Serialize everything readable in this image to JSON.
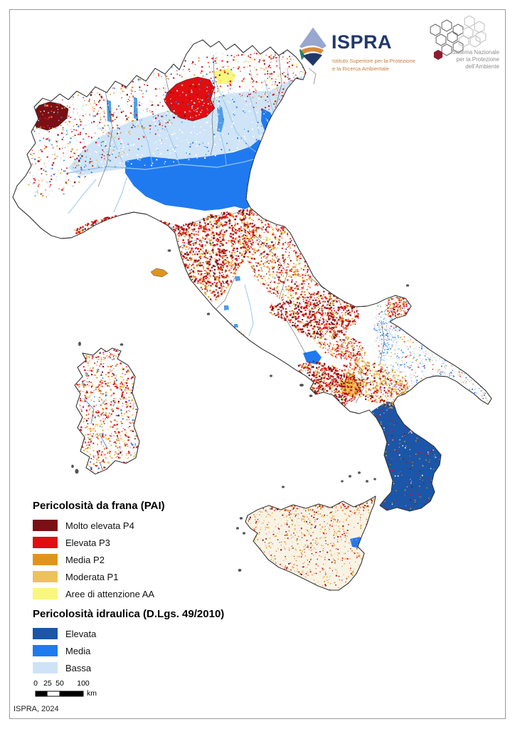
{
  "page": {
    "attribution": "ISPRA, 2024"
  },
  "logos": {
    "ispra": {
      "acronym": "ISPRA",
      "subtitle_line1": "Istituto Superiore per la Protezione",
      "subtitle_line2": "e la Ricerca Ambientale",
      "navy": "#21386b",
      "orange": "#d8893a",
      "teal": "#2a7f6f",
      "light_blue": "#98a7d0",
      "subtitle_color": "#c8803c"
    },
    "snpa": {
      "line1": "Sistema Nazionale",
      "line2": "per la Protezione",
      "line3": "dell'Ambiente",
      "hex_fill": "#8c1d2f",
      "hex_dark": "#6f6f6f",
      "hex_light": "#c4c4c4",
      "text_color": "#8f8f8f"
    }
  },
  "legend": {
    "landslide": {
      "title": "Pericolosità da frana (PAI)",
      "items": [
        {
          "label": "Molto elevata P4",
          "color": "#7a1016"
        },
        {
          "label": "Elevata P3",
          "color": "#e00d11"
        },
        {
          "label": "Media P2",
          "color": "#e09420"
        },
        {
          "label": "Moderata P1",
          "color": "#edc25c"
        },
        {
          "label": "Aree di attenzione AA",
          "color": "#faf77d"
        }
      ]
    },
    "hydraulic": {
      "title": "Pericolosità idraulica (D.Lgs. 49/2010)",
      "items": [
        {
          "label": "Elevata",
          "color": "#1b56a8"
        },
        {
          "label": "Media",
          "color": "#1f7af0"
        },
        {
          "label": "Bassa",
          "color": "#cfe3f7"
        }
      ]
    }
  },
  "scale_bar": {
    "tick_labels": [
      "0",
      "25",
      "50",
      "100"
    ],
    "unit": "km"
  },
  "map": {
    "sea_color": "#ffffff",
    "coastline_color": "#2f2f2f",
    "border_color": "#3a3a3a",
    "lake_color": "#4f9de6",
    "river_color": "#8fc1ec",
    "sicily_base": "#f9f3e6",
    "po_plain_low": "#cfe4f6",
    "island_dot": "#555555"
  }
}
